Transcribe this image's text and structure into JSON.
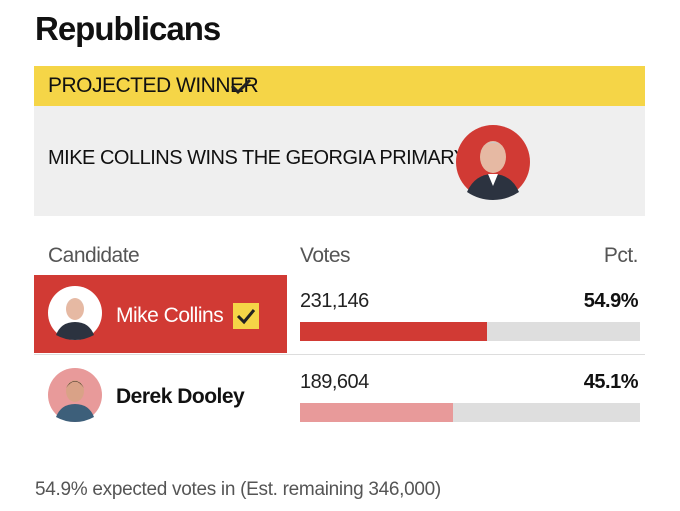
{
  "header": {
    "title": "Republicans"
  },
  "banner": {
    "label": "PROJECTED WINNER",
    "headline": "MIKE COLLINS WINS THE GEORGIA PRIMARY"
  },
  "table": {
    "columns": [
      "Candidate",
      "Votes",
      "Pct."
    ],
    "rows": [
      {
        "name": "Mike Collins",
        "votes": "231,146",
        "pct": 54.9,
        "pct_label": "54.9%",
        "color": "#d13a34"
      },
      {
        "name": "Derek Dooley",
        "votes": "189,604",
        "pct": 45.1,
        "pct_label": "45.1%",
        "color": "#e89a9a"
      }
    ]
  },
  "footer": {
    "note": "54.9% expected votes in (Est. remaining 346,000)"
  }
}
